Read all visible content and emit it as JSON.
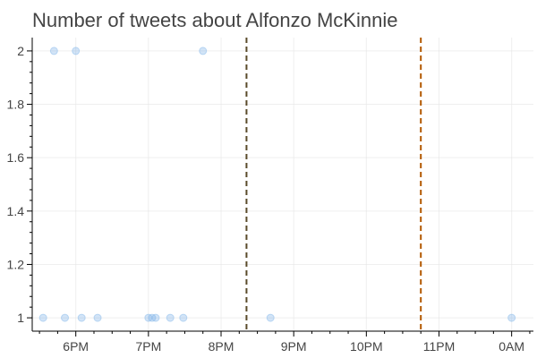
{
  "chart_data": {
    "type": "scatter",
    "title": "Number of tweets about Alfonzo McKinnie",
    "xlabel": "",
    "ylabel": "",
    "x_unit": "hours",
    "xlim": [
      17.4,
      24.3
    ],
    "ylim": [
      0.95,
      2.05
    ],
    "x_ticks": [
      {
        "value": 18,
        "label": "6PM"
      },
      {
        "value": 19,
        "label": "7PM"
      },
      {
        "value": 20,
        "label": "8PM"
      },
      {
        "value": 21,
        "label": "9PM"
      },
      {
        "value": 22,
        "label": "10PM"
      },
      {
        "value": 23,
        "label": "11PM"
      },
      {
        "value": 24,
        "label": "0AM"
      }
    ],
    "y_ticks": [
      {
        "value": 1.0,
        "label": "1"
      },
      {
        "value": 1.2,
        "label": "1.2"
      },
      {
        "value": 1.4,
        "label": "1.4"
      },
      {
        "value": 1.6,
        "label": "1.6"
      },
      {
        "value": 1.8,
        "label": "1.8"
      },
      {
        "value": 2.0,
        "label": "2"
      }
    ],
    "grid": true,
    "point_color": "#7db3e8",
    "points": [
      {
        "x": 17.7,
        "y": 2
      },
      {
        "x": 18.0,
        "y": 2
      },
      {
        "x": 19.75,
        "y": 2
      },
      {
        "x": 17.55,
        "y": 1
      },
      {
        "x": 17.85,
        "y": 1
      },
      {
        "x": 18.08,
        "y": 1
      },
      {
        "x": 18.3,
        "y": 1
      },
      {
        "x": 19.0,
        "y": 1
      },
      {
        "x": 19.05,
        "y": 1
      },
      {
        "x": 19.1,
        "y": 1
      },
      {
        "x": 19.3,
        "y": 1
      },
      {
        "x": 19.48,
        "y": 1
      },
      {
        "x": 20.68,
        "y": 1
      },
      {
        "x": 24.0,
        "y": 1
      }
    ],
    "vlines": [
      {
        "x": 20.35,
        "color": "#5a4a2a"
      },
      {
        "x": 22.75,
        "color": "#b35900"
      }
    ]
  }
}
